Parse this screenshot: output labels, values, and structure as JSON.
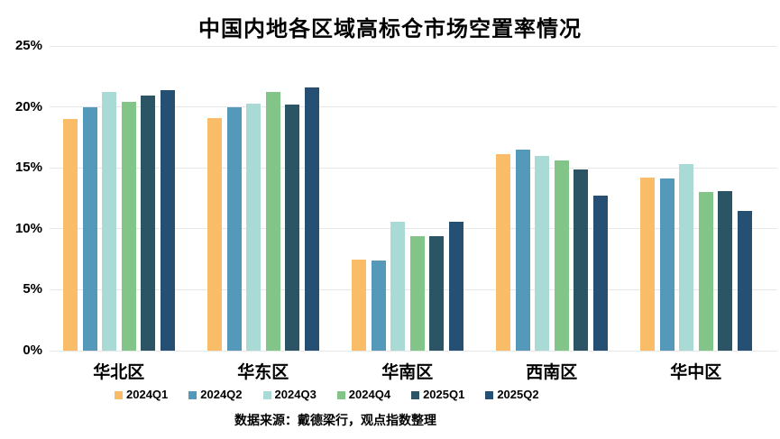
{
  "chart_data": {
    "type": "bar",
    "title": "中国内地各区域高标仓市场空置率情况",
    "source_note": "数据来源：戴德梁行，观点指数整理",
    "categories": [
      "华北区",
      "华东区",
      "华南区",
      "西南区",
      "华中区"
    ],
    "series": [
      {
        "name": "2024Q1",
        "color": "#F9BD67",
        "values": [
          19.0,
          19.1,
          7.5,
          16.1,
          14.2
        ]
      },
      {
        "name": "2024Q2",
        "color": "#5499B9",
        "values": [
          20.0,
          20.0,
          7.4,
          16.5,
          14.1
        ]
      },
      {
        "name": "2024Q3",
        "color": "#A9DAD5",
        "values": [
          21.2,
          20.3,
          10.6,
          16.0,
          15.3
        ]
      },
      {
        "name": "2024Q4",
        "color": "#83C589",
        "values": [
          20.4,
          21.2,
          9.4,
          15.6,
          13.0
        ]
      },
      {
        "name": "2025Q1",
        "color": "#2B5565",
        "values": [
          20.9,
          20.2,
          9.4,
          14.9,
          13.1
        ]
      },
      {
        "name": "2025Q2",
        "color": "#255074",
        "values": [
          21.4,
          21.6,
          10.6,
          12.7,
          11.5
        ]
      }
    ],
    "xlabel": "",
    "ylabel": "",
    "y_axis": {
      "min": 0,
      "max": 25,
      "tick_step": 5,
      "tick_labels": [
        "0%",
        "5%",
        "10%",
        "15%",
        "20%",
        "25%"
      ]
    },
    "grid": true,
    "legend_position": "bottom",
    "colors": {
      "gridline": "#e7e7e7",
      "text": "#000000",
      "background": "#ffffff"
    }
  }
}
